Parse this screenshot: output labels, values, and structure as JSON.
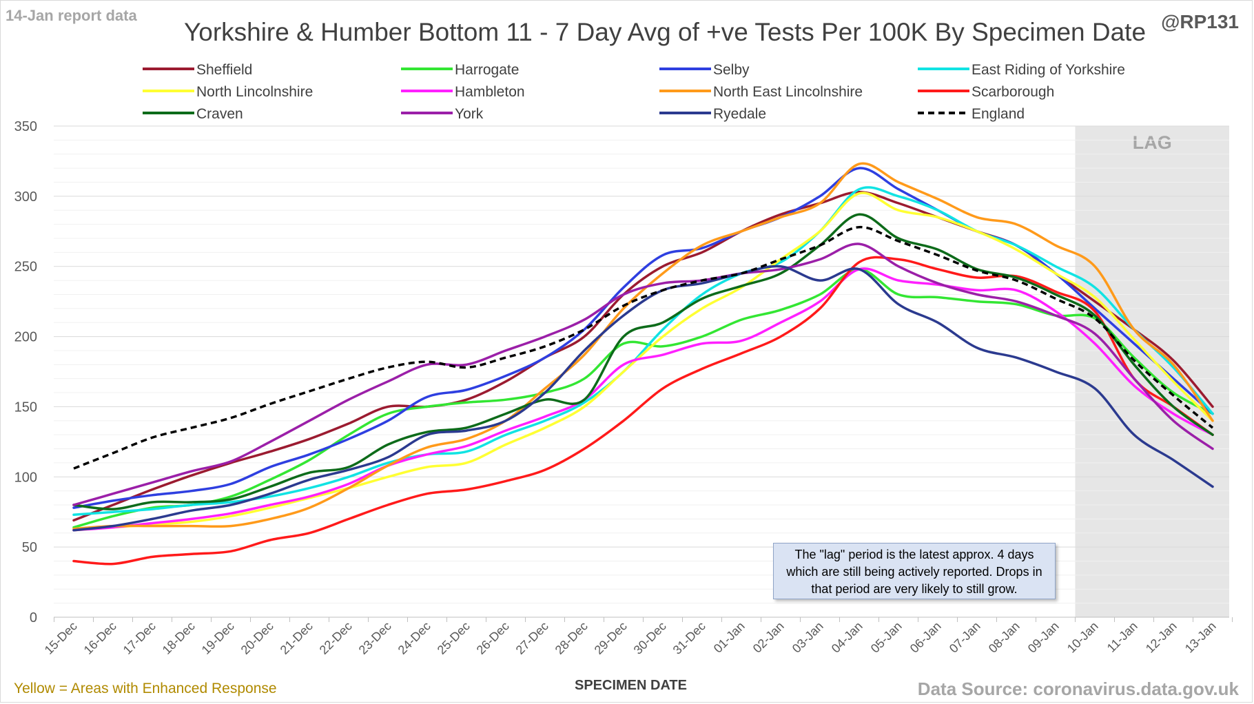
{
  "header": {
    "report_date": "14-Jan report data",
    "handle": "@RP131",
    "title": "Yorkshire & Humber Bottom 11 - 7 Day Avg of +ve Tests Per 100K By Specimen Date"
  },
  "footer": {
    "enhanced_note": "Yellow = Areas with Enhanced Response",
    "source": "Data Source: coronavirus.data.gov.uk"
  },
  "note_box": {
    "text": "The \"lag\" period is the latest approx. 4 days which are still being actively reported.  Drops in that period are very likely to still grow."
  },
  "chart_data": {
    "type": "line",
    "title": "Yorkshire & Humber Bottom 11 - 7 Day Avg of +ve Tests Per 100K By Specimen Date",
    "xlabel": "SPECIMEN DATE",
    "ylabel": "",
    "ylim": [
      0,
      350
    ],
    "yticks": [
      0,
      50,
      100,
      150,
      200,
      250,
      300,
      350
    ],
    "grid": true,
    "legend_position": "top",
    "lag_label": "LAG",
    "lag_start_category": "10-Jan",
    "categories": [
      "15-Dec",
      "16-Dec",
      "17-Dec",
      "18-Dec",
      "19-Dec",
      "20-Dec",
      "21-Dec",
      "22-Dec",
      "23-Dec",
      "24-Dec",
      "25-Dec",
      "26-Dec",
      "27-Dec",
      "28-Dec",
      "29-Dec",
      "30-Dec",
      "31-Dec",
      "01-Jan",
      "02-Jan",
      "03-Jan",
      "04-Jan",
      "05-Jan",
      "06-Jan",
      "07-Jan",
      "08-Jan",
      "09-Jan",
      "10-Jan",
      "11-Jan",
      "12-Jan",
      "13-Jan"
    ],
    "series": [
      {
        "name": "Sheffield",
        "color": "#9b1b30",
        "dashed": false,
        "values": [
          69,
          80,
          91,
          101,
          110,
          118,
          127,
          138,
          150,
          150,
          155,
          168,
          185,
          200,
          230,
          250,
          260,
          275,
          287,
          295,
          303,
          295,
          285,
          275,
          265,
          245,
          225,
          205,
          183,
          150
        ]
      },
      {
        "name": "Harrogate",
        "color": "#33e633",
        "dashed": false,
        "values": [
          64,
          72,
          78,
          80,
          86,
          98,
          112,
          130,
          145,
          150,
          153,
          155,
          160,
          170,
          195,
          193,
          200,
          212,
          219,
          230,
          248,
          230,
          228,
          225,
          223,
          215,
          213,
          185,
          160,
          145
        ]
      },
      {
        "name": "Selby",
        "color": "#2e3fe0",
        "dashed": false,
        "values": [
          78,
          83,
          87,
          90,
          95,
          107,
          116,
          127,
          140,
          157,
          162,
          172,
          185,
          205,
          235,
          258,
          263,
          275,
          285,
          300,
          320,
          305,
          290,
          275,
          265,
          245,
          220,
          195,
          170,
          145
        ]
      },
      {
        "name": "East Riding of Yorkshire",
        "color": "#11e3e3",
        "dashed": false,
        "values": [
          73,
          75,
          77,
          80,
          82,
          86,
          92,
          100,
          110,
          116,
          118,
          130,
          140,
          153,
          175,
          205,
          230,
          245,
          253,
          275,
          305,
          300,
          290,
          275,
          265,
          250,
          235,
          205,
          178,
          145
        ]
      },
      {
        "name": "North Lincolnshire",
        "color": "#ffff33",
        "dashed": false,
        "values": [
          62,
          64,
          66,
          68,
          72,
          78,
          85,
          92,
          100,
          107,
          110,
          123,
          135,
          150,
          175,
          200,
          220,
          235,
          255,
          275,
          302,
          290,
          285,
          275,
          262,
          245,
          228,
          198,
          168,
          140
        ]
      },
      {
        "name": "Hambleton",
        "color": "#ff20ff",
        "dashed": false,
        "values": [
          62,
          64,
          67,
          70,
          74,
          80,
          86,
          95,
          108,
          116,
          122,
          133,
          143,
          155,
          180,
          187,
          195,
          197,
          210,
          225,
          248,
          240,
          237,
          233,
          233,
          218,
          195,
          165,
          145,
          130
        ]
      },
      {
        "name": "North East Lincolnshire",
        "color": "#ff9a1a",
        "dashed": false,
        "values": [
          63,
          65,
          65,
          65,
          65,
          70,
          78,
          92,
          108,
          121,
          127,
          140,
          163,
          187,
          220,
          245,
          265,
          275,
          285,
          295,
          323,
          310,
          298,
          285,
          280,
          265,
          250,
          205,
          180,
          140
        ]
      },
      {
        "name": "Scarborough",
        "color": "#ff1a1a",
        "dashed": false,
        "values": [
          40,
          38,
          43,
          45,
          47,
          55,
          60,
          70,
          80,
          88,
          91,
          97,
          105,
          120,
          140,
          163,
          177,
          188,
          200,
          220,
          253,
          255,
          248,
          242,
          243,
          232,
          218,
          170,
          150,
          130
        ]
      },
      {
        "name": "Craven",
        "color": "#0d6b1a",
        "dashed": false,
        "values": [
          80,
          77,
          82,
          82,
          84,
          93,
          103,
          107,
          123,
          132,
          135,
          145,
          155,
          155,
          200,
          210,
          227,
          236,
          245,
          265,
          287,
          270,
          262,
          248,
          242,
          230,
          215,
          180,
          150,
          130
        ]
      },
      {
        "name": "York",
        "color": "#9b1fa8",
        "dashed": false,
        "values": [
          80,
          88,
          96,
          104,
          111,
          125,
          140,
          155,
          168,
          180,
          180,
          190,
          200,
          212,
          230,
          238,
          240,
          245,
          248,
          255,
          266,
          250,
          238,
          230,
          225,
          215,
          202,
          170,
          140,
          120
        ]
      },
      {
        "name": "Ryedale",
        "color": "#2b3a8f",
        "dashed": false,
        "values": [
          62,
          65,
          70,
          76,
          80,
          88,
          98,
          105,
          114,
          130,
          133,
          140,
          160,
          190,
          215,
          233,
          238,
          245,
          250,
          240,
          248,
          223,
          210,
          192,
          185,
          175,
          163,
          130,
          112,
          93
        ]
      },
      {
        "name": "England",
        "color": "#000000",
        "dashed": true,
        "values": [
          106,
          117,
          128,
          135,
          142,
          152,
          161,
          170,
          178,
          182,
          178,
          185,
          193,
          205,
          222,
          233,
          240,
          245,
          255,
          265,
          278,
          268,
          258,
          247,
          240,
          227,
          213,
          183,
          158,
          135
        ]
      }
    ]
  }
}
